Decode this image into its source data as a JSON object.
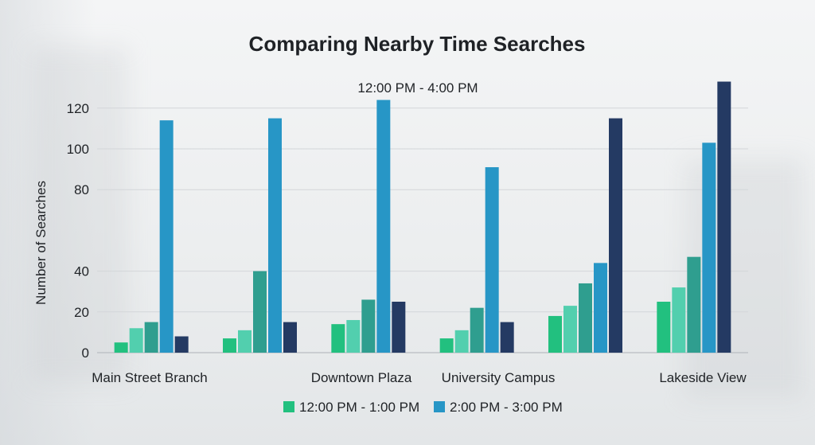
{
  "chart_data": {
    "type": "bar",
    "title": "Comparing Nearby Time Searches",
    "annotation": "12:00 PM - 4:00 PM",
    "ylabel": "Number of Searches",
    "xlabel": "",
    "ylim": [
      0,
      135
    ],
    "yticks": [
      0,
      20,
      40,
      80,
      100,
      120
    ],
    "grid": true,
    "legend_position": "bottom",
    "categories": [
      "Main Street Branch",
      "",
      "Downtown Plaza",
      "University Campus",
      "",
      "Lakeside View"
    ],
    "series": [
      {
        "name": "12:00 PM - 1:00 PM",
        "color": "#22c07f",
        "values": [
          5,
          7,
          14,
          7,
          18,
          25
        ]
      },
      {
        "color": "#52cfae",
        "values": [
          12,
          11,
          16,
          11,
          23,
          32
        ]
      },
      {
        "color": "#2f9e8f",
        "values": [
          15,
          40,
          26,
          22,
          34,
          47
        ]
      },
      {
        "name": "2:00 PM - 3:00 PM",
        "color": "#2796c6",
        "values": [
          114,
          115,
          124,
          91,
          44,
          103
        ]
      },
      {
        "color": "#243a63",
        "values": [
          8,
          15,
          25,
          15,
          115,
          133
        ]
      }
    ]
  }
}
